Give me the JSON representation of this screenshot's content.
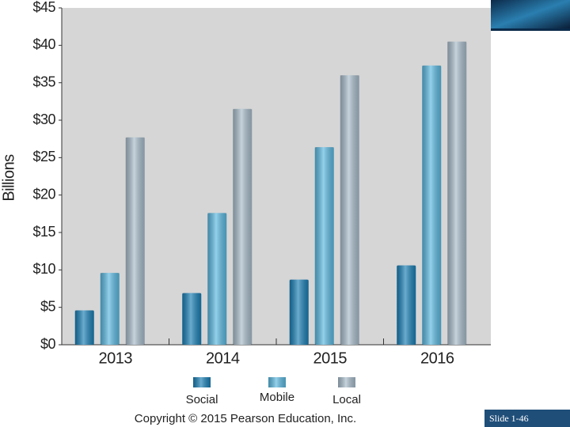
{
  "chart_data": {
    "type": "bar",
    "ylabel": "Billions",
    "categories": [
      "2013",
      "2014",
      "2015",
      "2016"
    ],
    "series": [
      {
        "name": "Social",
        "color": "#1a7fb5",
        "values": [
          4.6,
          6.9,
          8.7,
          10.6
        ]
      },
      {
        "name": "Mobile",
        "color": "#5bb8e0",
        "values": [
          9.6,
          17.6,
          26.4,
          37.3
        ]
      },
      {
        "name": "Local",
        "color": "#a8bccb",
        "values": [
          27.7,
          31.5,
          36.0,
          40.5
        ]
      }
    ],
    "ylim": [
      0,
      45
    ],
    "yticks": [
      {
        "value": 0,
        "label": "$0"
      },
      {
        "value": 5,
        "label": "$5"
      },
      {
        "value": 10,
        "label": "$10"
      },
      {
        "value": 15,
        "label": "$15"
      },
      {
        "value": 20,
        "label": "$20"
      },
      {
        "value": 25,
        "label": "$25"
      },
      {
        "value": 30,
        "label": "$30"
      },
      {
        "value": 35,
        "label": "$35"
      },
      {
        "value": 40,
        "label": "$40"
      },
      {
        "value": 45,
        "label": "$45"
      }
    ],
    "grid": false,
    "legend": "bottom"
  },
  "footer": "Copyright © 2015 Pearson Education, Inc.",
  "slide_label": "Slide 1-46"
}
